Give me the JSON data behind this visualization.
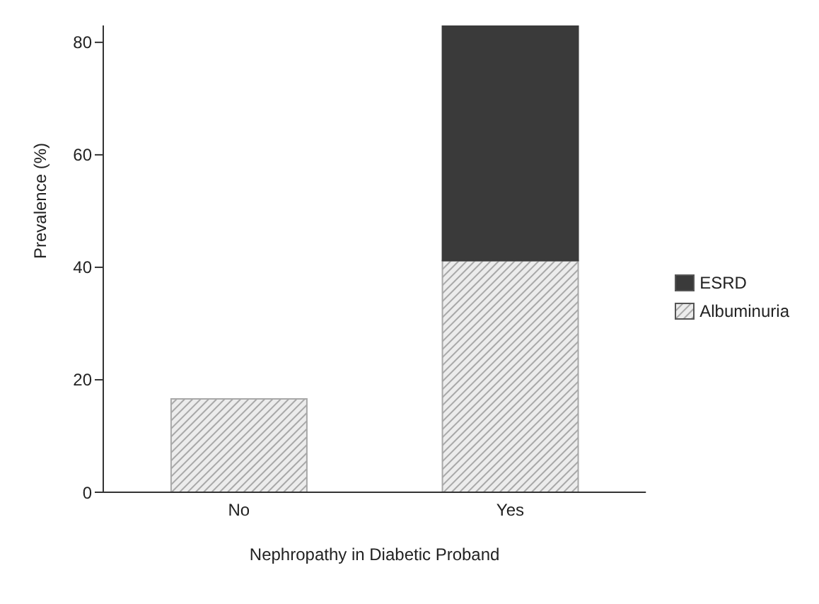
{
  "chart_data": {
    "type": "bar",
    "xlabel": "Nephropathy in Diabetic Proband",
    "ylabel": "Prevalence (%)",
    "categories": [
      "No",
      "Yes"
    ],
    "stacked": true,
    "series": [
      {
        "name": "Albuminuria",
        "color": "#a8a8a8",
        "values": [
          16.6,
          41.2
        ]
      },
      {
        "name": "ESRD",
        "color": "#3a3a3a",
        "values": [
          null,
          41.8
        ]
      }
    ],
    "ylim": [
      0,
      83
    ],
    "yticks": [
      0,
      20,
      40,
      60,
      80
    ],
    "grid": false,
    "legend": "right"
  }
}
